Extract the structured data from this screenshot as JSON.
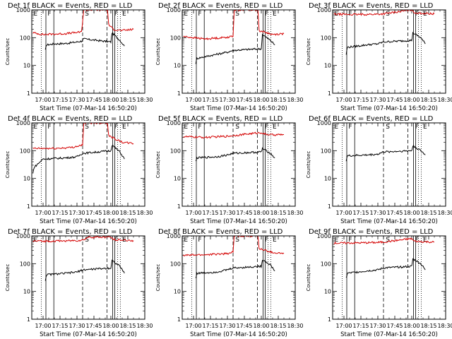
{
  "figure": {
    "time_labels": [
      "17:00",
      "17:15",
      "17:30",
      "17:45",
      "18:00",
      "18:15",
      "18:30"
    ],
    "y_tick_labels": [
      "1",
      "10",
      "100",
      "1000"
    ],
    "ylabel": "Counts/sec",
    "xlabel": "Start Time (07-Mar-14 16:50:20)",
    "region_letters": [
      "E",
      "F",
      "S",
      "F",
      "E"
    ]
  },
  "chart_data": [
    {
      "type": "line",
      "title": "Det 1f BLACK = Events, RED = LLD",
      "xlabel": "Start Time (07-Mar-14 16:50:20)",
      "ylabel": "Counts/sec",
      "ylim": [
        1,
        1000
      ],
      "yscale": "log",
      "x_range": [
        "16:50",
        "18:30"
      ],
      "series": [
        {
          "name": "Events",
          "color": "#000000",
          "points": [
            [
              "17:02",
              35
            ],
            [
              "17:03",
              55
            ],
            [
              "17:10",
              60
            ],
            [
              "17:20",
              62
            ],
            [
              "17:30",
              70
            ],
            [
              "17:34",
              75
            ],
            [
              "17:36",
              90
            ],
            [
              "18:00",
              70
            ],
            [
              "18:01",
              150
            ],
            [
              "18:08",
              80
            ],
            [
              "18:12",
              50
            ]
          ]
        },
        {
          "name": "LLD",
          "color": "#d40000",
          "points": [
            [
              "16:51",
              150
            ],
            [
              "17:00",
              130
            ],
            [
              "17:20",
              140
            ],
            [
              "17:34",
              160
            ],
            [
              "17:36",
              1000
            ],
            [
              "17:57",
              1000
            ],
            [
              "17:58",
              300
            ],
            [
              "18:02",
              200
            ],
            [
              "18:10",
              180
            ],
            [
              "18:20",
              200
            ]
          ]
        }
      ]
    },
    {
      "type": "line",
      "title": "Det 2f BLACK = Events, RED = LLD",
      "xlabel": "Start Time (07-Mar-14 16:50:20)",
      "ylabel": "Counts/sec",
      "ylim": [
        1,
        1000
      ],
      "yscale": "log",
      "x_range": [
        "16:50",
        "18:30"
      ],
      "series": [
        {
          "name": "Events",
          "color": "#000000",
          "points": [
            [
              "17:02",
              12
            ],
            [
              "17:03",
              18
            ],
            [
              "17:20",
              25
            ],
            [
              "17:30",
              30
            ],
            [
              "17:35",
              35
            ],
            [
              "18:00",
              40
            ],
            [
              "18:01",
              130
            ],
            [
              "18:08",
              80
            ],
            [
              "18:12",
              55
            ]
          ]
        },
        {
          "name": "LLD",
          "color": "#d40000",
          "points": [
            [
              "16:51",
              110
            ],
            [
              "17:10",
              90
            ],
            [
              "17:25",
              100
            ],
            [
              "17:35",
              110
            ],
            [
              "17:36",
              1000
            ],
            [
              "17:57",
              1000
            ],
            [
              "17:58",
              180
            ],
            [
              "18:10",
              130
            ],
            [
              "18:20",
              140
            ]
          ]
        }
      ]
    },
    {
      "type": "line",
      "title": "Det 3f BLACK = Events, RED = LLD",
      "xlabel": "Start Time (07-Mar-14 16:50:20)",
      "ylabel": "Counts/sec",
      "ylim": [
        1,
        1000
      ],
      "yscale": "log",
      "x_range": [
        "16:50",
        "18:30"
      ],
      "series": [
        {
          "name": "Events",
          "color": "#000000",
          "points": [
            [
              "17:02",
              25
            ],
            [
              "17:03",
              45
            ],
            [
              "17:20",
              55
            ],
            [
              "17:30",
              60
            ],
            [
              "17:35",
              70
            ],
            [
              "18:00",
              80
            ],
            [
              "18:01",
              150
            ],
            [
              "18:08",
              100
            ],
            [
              "18:12",
              60
            ]
          ]
        },
        {
          "name": "LLD",
          "color": "#d40000",
          "points": [
            [
              "16:51",
              700
            ],
            [
              "17:10",
              680
            ],
            [
              "17:30",
              700
            ],
            [
              "17:35",
              720
            ],
            [
              "18:00",
              1000
            ],
            [
              "18:02",
              800
            ],
            [
              "18:10",
              750
            ],
            [
              "18:20",
              720
            ]
          ]
        }
      ]
    },
    {
      "type": "line",
      "title": "Det 4f BLACK = Events, RED = LLD",
      "xlabel": "Start Time (07-Mar-14 16:50:20)",
      "ylabel": "Counts/sec",
      "ylim": [
        1,
        1000
      ],
      "yscale": "log",
      "x_range": [
        "16:50",
        "18:30"
      ],
      "series": [
        {
          "name": "Events",
          "color": "#000000",
          "points": [
            [
              "16:51",
              15
            ],
            [
              "16:52",
              25
            ],
            [
              "17:00",
              50
            ],
            [
              "17:20",
              55
            ],
            [
              "17:30",
              60
            ],
            [
              "17:35",
              80
            ],
            [
              "18:00",
              100
            ],
            [
              "18:01",
              160
            ],
            [
              "18:08",
              90
            ],
            [
              "18:12",
              50
            ]
          ]
        },
        {
          "name": "LLD",
          "color": "#d40000",
          "points": [
            [
              "16:51",
              120
            ],
            [
              "17:10",
              120
            ],
            [
              "17:25",
              130
            ],
            [
              "17:35",
              160
            ],
            [
              "17:36",
              1000
            ],
            [
              "17:57",
              1000
            ],
            [
              "17:58",
              350
            ],
            [
              "18:10",
              200
            ],
            [
              "18:20",
              180
            ]
          ]
        }
      ]
    },
    {
      "type": "line",
      "title": "Det 5f BLACK = Events, RED = LLD",
      "xlabel": "Start Time (07-Mar-14 16:50:20)",
      "ylabel": "Counts/sec",
      "ylim": [
        1,
        1000
      ],
      "yscale": "log",
      "x_range": [
        "16:50",
        "18:30"
      ],
      "series": [
        {
          "name": "Events",
          "color": "#000000",
          "points": [
            [
              "17:02",
              40
            ],
            [
              "17:03",
              55
            ],
            [
              "17:20",
              60
            ],
            [
              "17:30",
              70
            ],
            [
              "17:35",
              80
            ],
            [
              "18:00",
              90
            ],
            [
              "18:01",
              120
            ],
            [
              "18:08",
              80
            ],
            [
              "18:12",
              55
            ]
          ]
        },
        {
          "name": "LLD",
          "color": "#d40000",
          "points": [
            [
              "16:51",
              320
            ],
            [
              "17:10",
              300
            ],
            [
              "17:30",
              330
            ],
            [
              "17:35",
              350
            ],
            [
              "18:00",
              450
            ],
            [
              "18:02",
              400
            ],
            [
              "18:10",
              370
            ],
            [
              "18:20",
              380
            ]
          ]
        }
      ]
    },
    {
      "type": "line",
      "title": "Det 6f BLACK = Events, RED = LLD",
      "xlabel": "Start Time (07-Mar-14 16:50:20)",
      "ylabel": "Counts/sec",
      "ylim": [
        1,
        1000
      ],
      "yscale": "log",
      "x_range": [
        "16:50",
        "18:30"
      ],
      "series": [
        {
          "name": "Events",
          "color": "#000000",
          "points": [
            [
              "17:02",
              45
            ],
            [
              "17:03",
              65
            ],
            [
              "17:20",
              70
            ],
            [
              "17:30",
              75
            ],
            [
              "17:35",
              90
            ],
            [
              "18:00",
              100
            ],
            [
              "18:01",
              150
            ],
            [
              "18:08",
              100
            ],
            [
              "18:12",
              70
            ]
          ]
        },
        {
          "name": "LLD",
          "color": "#d40000",
          "points": []
        }
      ]
    },
    {
      "type": "line",
      "title": "Det 7f BLACK = Events, RED = LLD",
      "xlabel": "Start Time (07-Mar-14 16:50:20)",
      "ylabel": "Counts/sec",
      "ylim": [
        1,
        1000
      ],
      "yscale": "log",
      "x_range": [
        "16:50",
        "18:30"
      ],
      "series": [
        {
          "name": "Events",
          "color": "#000000",
          "points": [
            [
              "17:02",
              25
            ],
            [
              "17:03",
              40
            ],
            [
              "17:20",
              45
            ],
            [
              "17:30",
              50
            ],
            [
              "17:35",
              60
            ],
            [
              "18:00",
              70
            ],
            [
              "18:01",
              130
            ],
            [
              "18:08",
              80
            ],
            [
              "18:12",
              45
            ]
          ]
        },
        {
          "name": "LLD",
          "color": "#d40000",
          "points": [
            [
              "16:51",
              650
            ],
            [
              "17:10",
              650
            ],
            [
              "17:30",
              680
            ],
            [
              "17:35",
              700
            ],
            [
              "17:40",
              900
            ],
            [
              "18:00",
              900
            ],
            [
              "18:02",
              750
            ],
            [
              "18:10",
              700
            ],
            [
              "18:20",
              680
            ]
          ]
        }
      ]
    },
    {
      "type": "line",
      "title": "Det 8f BLACK = Events, RED = LLD",
      "xlabel": "Start Time (07-Mar-14 16:50:20)",
      "ylabel": "Counts/sec",
      "ylim": [
        1,
        1000
      ],
      "yscale": "log",
      "x_range": [
        "16:50",
        "18:30"
      ],
      "series": [
        {
          "name": "Events",
          "color": "#000000",
          "points": [
            [
              "17:02",
              30
            ],
            [
              "17:03",
              45
            ],
            [
              "17:20",
              50
            ],
            [
              "17:30",
              60
            ],
            [
              "17:35",
              70
            ],
            [
              "18:00",
              80
            ],
            [
              "18:01",
              140
            ],
            [
              "18:08",
              90
            ],
            [
              "18:12",
              55
            ]
          ]
        },
        {
          "name": "LLD",
          "color": "#d40000",
          "points": [
            [
              "16:51",
              200
            ],
            [
              "17:10",
              210
            ],
            [
              "17:30",
              230
            ],
            [
              "17:35",
              260
            ],
            [
              "17:36",
              1000
            ],
            [
              "17:57",
              1000
            ],
            [
              "17:58",
              350
            ],
            [
              "18:10",
              250
            ],
            [
              "18:20",
              230
            ]
          ]
        }
      ]
    },
    {
      "type": "line",
      "title": "Det 9f BLACK = Events, RED = LLD",
      "xlabel": "Start Time (07-Mar-14 16:50:20)",
      "ylabel": "Counts/sec",
      "ylim": [
        1,
        1000
      ],
      "yscale": "log",
      "x_range": [
        "16:50",
        "18:30"
      ],
      "series": [
        {
          "name": "Events",
          "color": "#000000",
          "points": [
            [
              "17:02",
              30
            ],
            [
              "17:03",
              45
            ],
            [
              "17:20",
              55
            ],
            [
              "17:30",
              60
            ],
            [
              "17:35",
              70
            ],
            [
              "18:00",
              80
            ],
            [
              "18:01",
              150
            ],
            [
              "18:08",
              100
            ],
            [
              "18:12",
              60
            ]
          ]
        },
        {
          "name": "LLD",
          "color": "#d40000",
          "points": [
            [
              "16:51",
              550
            ],
            [
              "17:10",
              560
            ],
            [
              "17:30",
              580
            ],
            [
              "17:35",
              600
            ],
            [
              "18:00",
              800
            ],
            [
              "18:02",
              650
            ],
            [
              "18:10",
              620
            ],
            [
              "18:20",
              600
            ]
          ]
        }
      ]
    }
  ]
}
